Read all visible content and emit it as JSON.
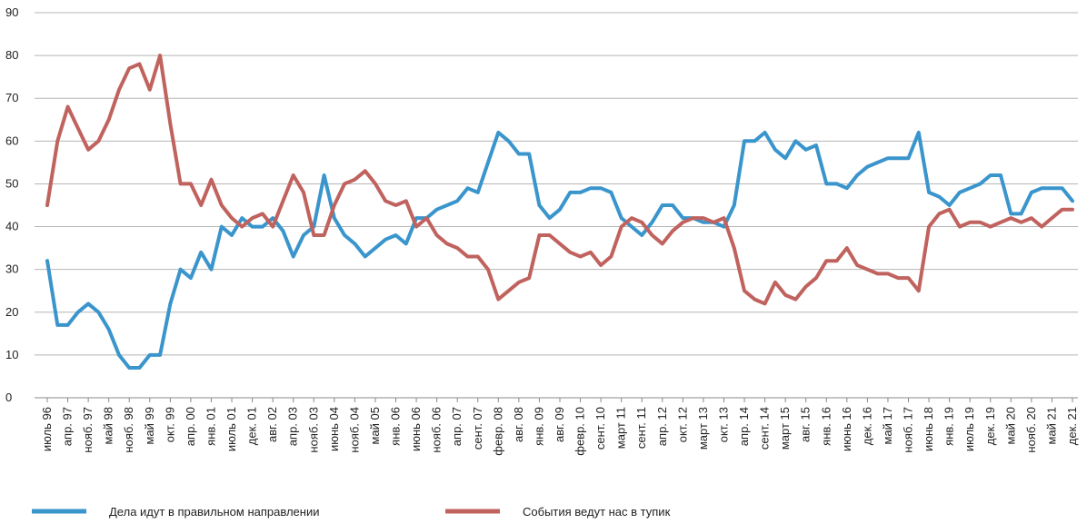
{
  "chart_data": {
    "type": "line",
    "categories": [
      "июль 96",
      null,
      "апр. 97",
      null,
      "нояб. 97",
      null,
      "май 98",
      null,
      "нояб. 98",
      null,
      "май 99",
      null,
      "окт. 99",
      null,
      "апр. 00",
      null,
      "янв. 01",
      null,
      "июль 01",
      null,
      "дек. 01",
      null,
      "авг. 02",
      null,
      "апр. 03",
      null,
      "нояб. 03",
      null,
      "июнь 04",
      null,
      "нояб. 04",
      null,
      "май 05",
      null,
      "янв. 06",
      null,
      "июнь 06",
      null,
      "нояб. 06",
      null,
      "апр. 07",
      null,
      "сент. 07",
      null,
      "февр. 08",
      null,
      "авг. 08",
      null,
      "янв. 09",
      null,
      "авг. 09",
      null,
      "февр. 10",
      null,
      "сент. 10",
      null,
      "март 11",
      null,
      "сент. 11",
      null,
      "апр. 12",
      null,
      "окт. 12",
      null,
      "март 13",
      null,
      "окт. 13",
      null,
      "апр. 14",
      null,
      "сент. 14",
      null,
      "март 15",
      null,
      "авг. 15",
      null,
      "янв. 16",
      null,
      "июнь 16",
      null,
      "дек. 16",
      null,
      "май 17",
      null,
      "нояб. 17",
      null,
      "июнь 18",
      null,
      "янв. 19",
      null,
      "июль 19",
      null,
      "дек. 19",
      null,
      "май 20",
      null,
      "нояб. 20",
      null,
      "май 21",
      null,
      "дек. 21"
    ],
    "series": [
      {
        "name": "Дела идут в правильном направлении",
        "color": "#3a95cc",
        "values": [
          32,
          17,
          17,
          20,
          22,
          20,
          16,
          10,
          7,
          7,
          10,
          10,
          22,
          30,
          28,
          34,
          30,
          40,
          38,
          42,
          40,
          40,
          42,
          39,
          33,
          38,
          40,
          52,
          42,
          38,
          36,
          33,
          35,
          37,
          38,
          36,
          42,
          42,
          44,
          45,
          46,
          49,
          48,
          55,
          62,
          60,
          57,
          57,
          45,
          42,
          44,
          48,
          48,
          49,
          49,
          48,
          42,
          40,
          38,
          41,
          45,
          45,
          42,
          42,
          41,
          41,
          40,
          45,
          60,
          60,
          62,
          58,
          56,
          60,
          58,
          59,
          50,
          50,
          49,
          52,
          54,
          55,
          56,
          56,
          56,
          62,
          48,
          47,
          45,
          48,
          49,
          50,
          52,
          52,
          43,
          43,
          48,
          49,
          49,
          49,
          46
        ]
      },
      {
        "name": "События ведут нас в тупик",
        "color": "#c0625e",
        "values": [
          45,
          60,
          68,
          63,
          58,
          60,
          65,
          72,
          77,
          78,
          72,
          80,
          64,
          50,
          50,
          45,
          51,
          45,
          42,
          40,
          42,
          43,
          40,
          46,
          52,
          48,
          38,
          38,
          45,
          50,
          51,
          53,
          50,
          46,
          45,
          46,
          40,
          42,
          38,
          36,
          35,
          33,
          33,
          30,
          23,
          25,
          27,
          28,
          38,
          38,
          36,
          34,
          33,
          34,
          31,
          33,
          40,
          42,
          41,
          38,
          36,
          39,
          41,
          42,
          42,
          41,
          42,
          35,
          25,
          23,
          22,
          27,
          24,
          23,
          26,
          28,
          32,
          32,
          35,
          31,
          30,
          29,
          29,
          28,
          28,
          25,
          40,
          43,
          44,
          40,
          41,
          41,
          40,
          41,
          42,
          41,
          42,
          40,
          42,
          44,
          44
        ]
      }
    ],
    "ylim": [
      0,
      90
    ],
    "yticks": [
      0,
      10,
      20,
      30,
      40,
      50,
      60,
      70,
      80,
      90
    ],
    "grid": true
  }
}
